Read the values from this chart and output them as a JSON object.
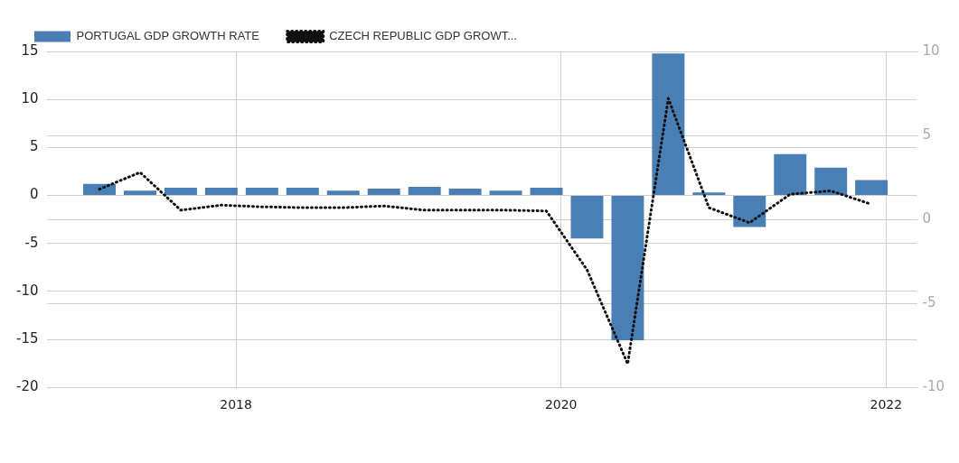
{
  "chart_data": {
    "type": "bar",
    "x": [
      2017.16,
      2017.41,
      2017.66,
      2017.91,
      2018.16,
      2018.41,
      2018.66,
      2018.91,
      2019.16,
      2019.41,
      2019.66,
      2019.91,
      2020.16,
      2020.41,
      2020.66,
      2020.91,
      2021.16,
      2021.41,
      2021.66,
      2021.91
    ],
    "series": [
      {
        "name": "PORTUGAL GDP GROWTH RATE",
        "color": "#4a7fb5",
        "values": [
          1.2,
          0.5,
          0.8,
          0.8,
          0.8,
          0.8,
          0.5,
          0.7,
          0.9,
          0.7,
          0.5,
          0.8,
          -4.5,
          -15.1,
          14.8,
          0.3,
          -3.3,
          4.3,
          2.9,
          1.6
        ]
      },
      {
        "name": "CZECH REPUBLIC GDP GROWT...",
        "type": "line",
        "axis": "y2",
        "color": "#111111",
        "line_style": "dotted",
        "values": [
          1.8,
          2.8,
          0.55,
          0.85,
          0.75,
          0.7,
          0.7,
          0.8,
          0.55,
          0.55,
          0.55,
          0.5,
          -3.0,
          -8.6,
          7.2,
          0.7,
          -0.2,
          1.5,
          1.7,
          0.9
        ]
      }
    ],
    "xlim": [
      2016.84,
      2022.19
    ],
    "xticks": [
      2018,
      2020,
      2022
    ],
    "ylim": [
      -20,
      15
    ],
    "yticks": [
      -20,
      -15,
      -10,
      -5,
      0,
      5,
      10,
      15
    ],
    "y2lim": [
      -10,
      10
    ],
    "y2ticks": [
      -10,
      -5,
      0,
      5,
      10
    ],
    "grid": true,
    "legend": "top left",
    "marker": "none"
  }
}
